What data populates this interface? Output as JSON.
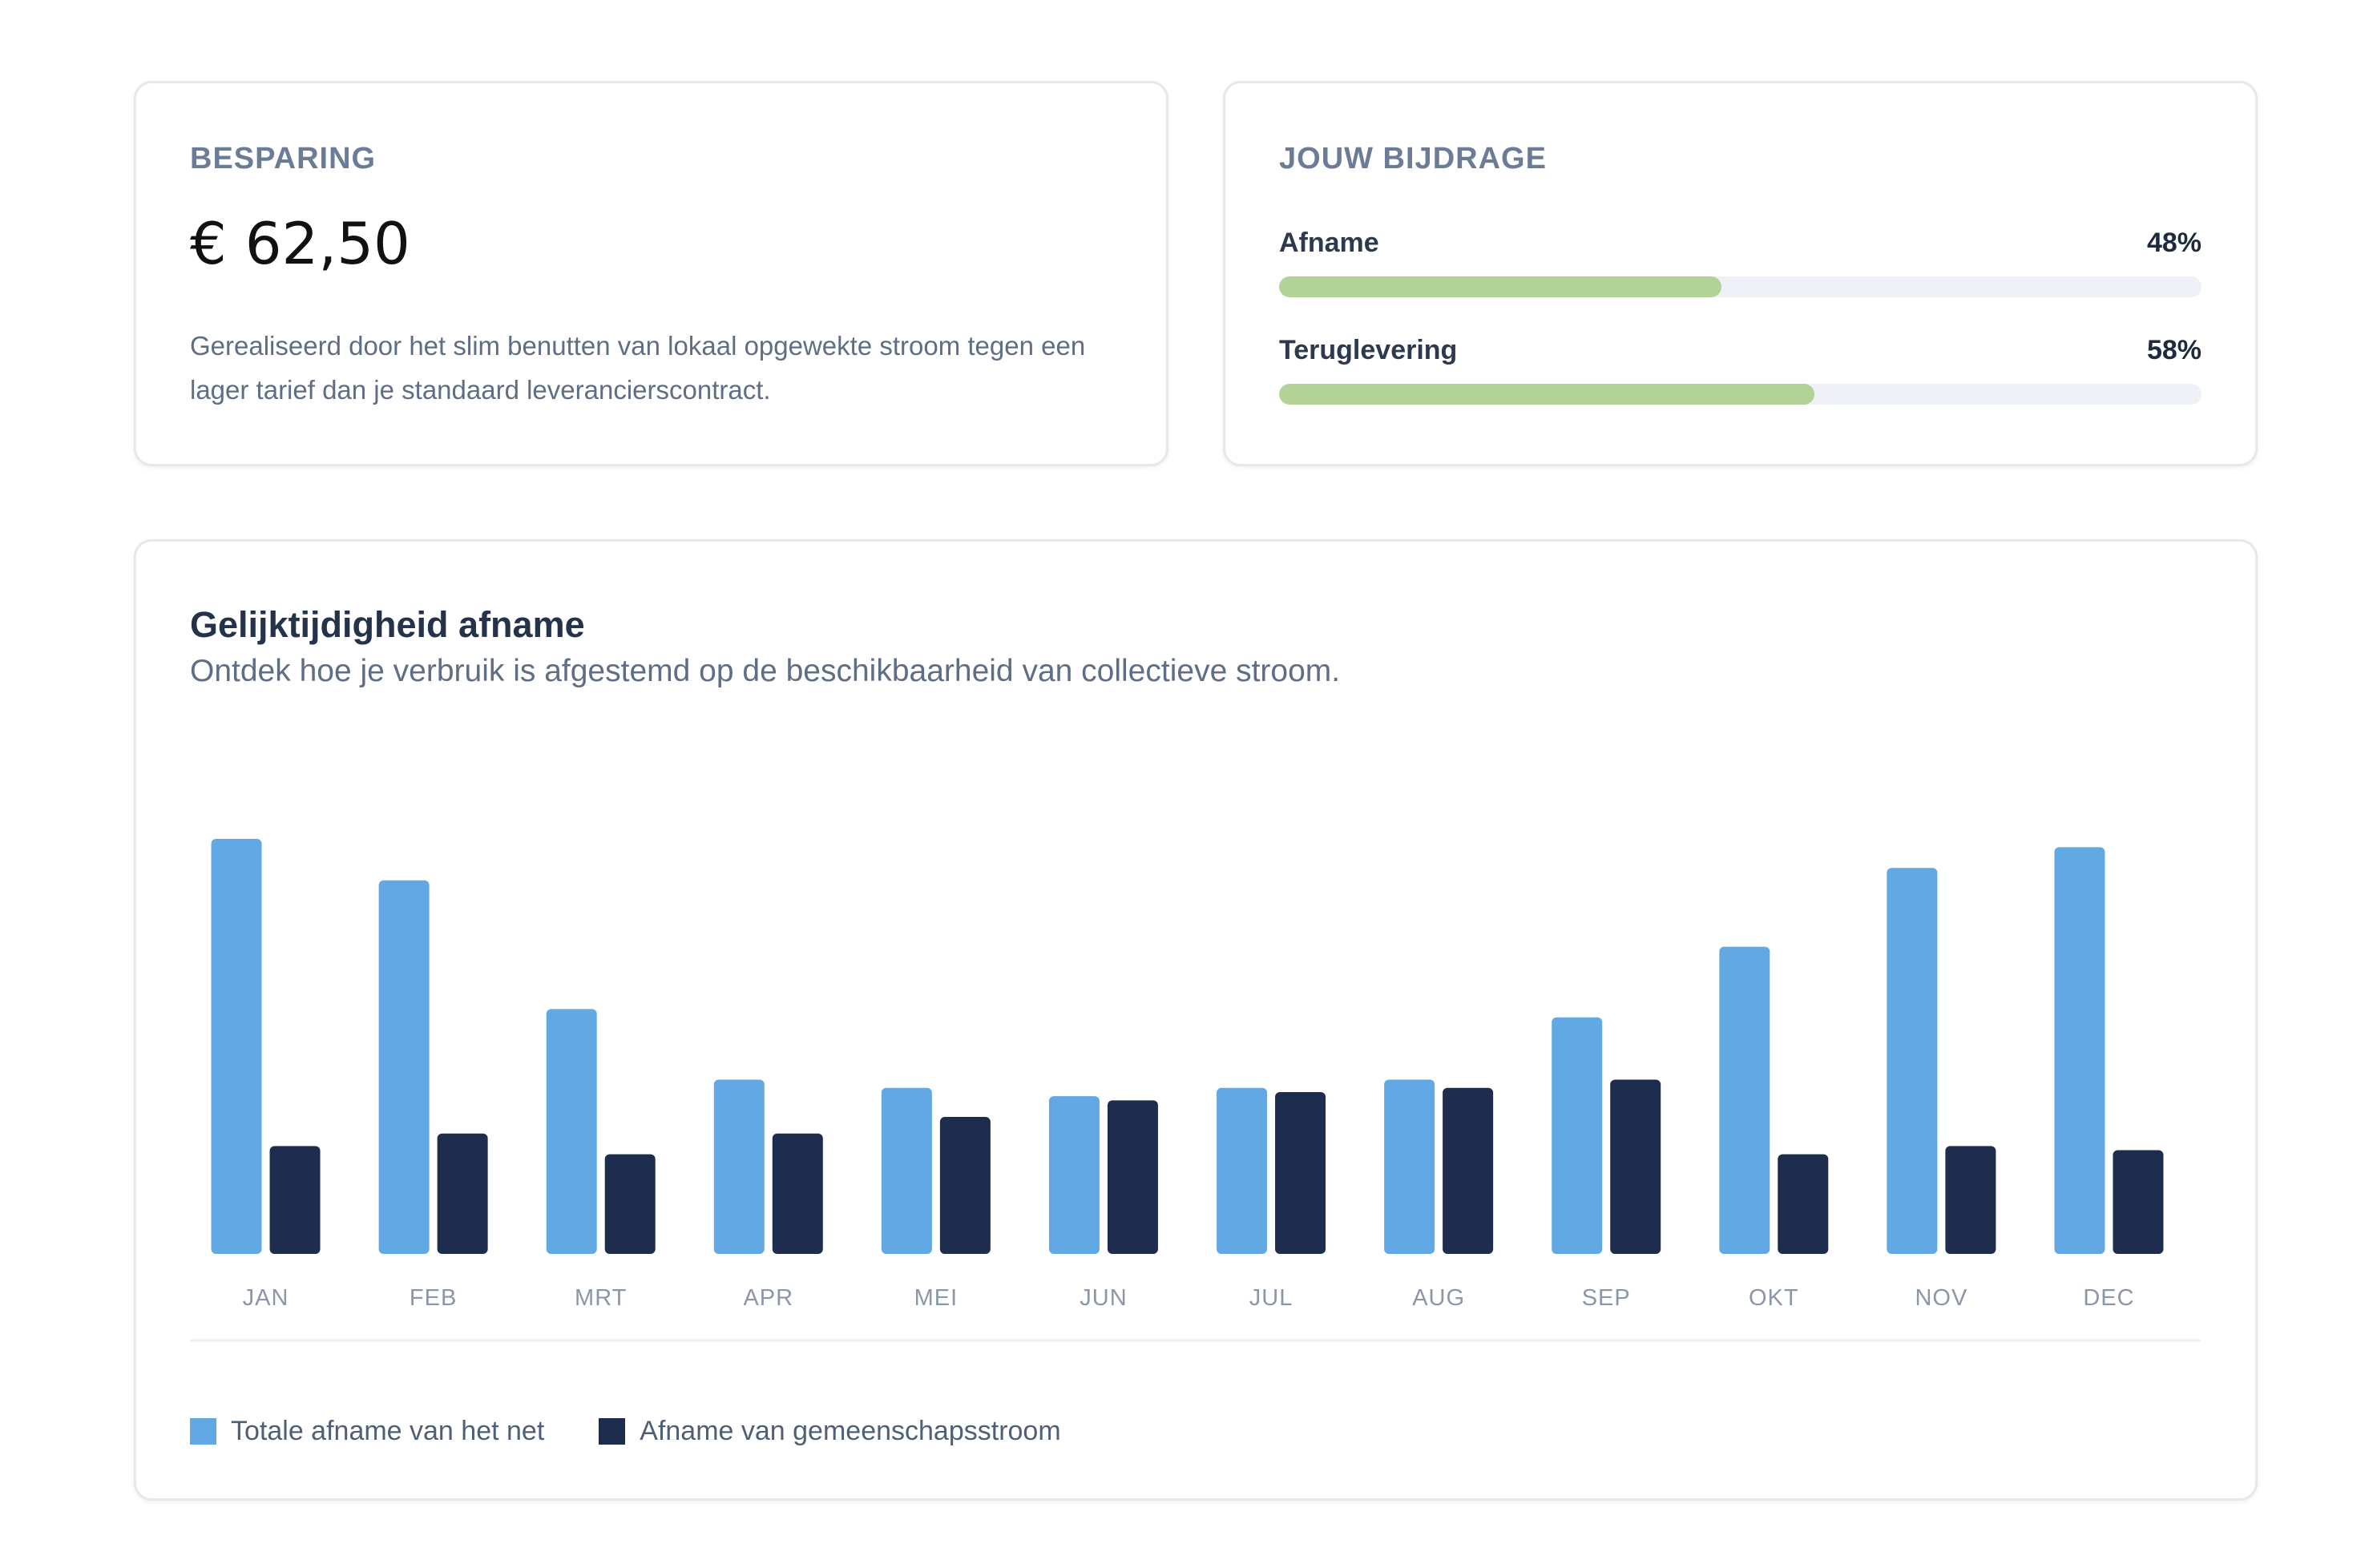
{
  "savings": {
    "label": "BESPARING",
    "amount": "€ 62,50",
    "description": "Gerealiseerd door het slim benutten van lokaal opgewekte stroom tegen een lager tarief dan je standaard leverancierscontract."
  },
  "contribution": {
    "label": "JOUW BIJDRAGE",
    "items": [
      {
        "label": "Afname",
        "percent_text": "48%",
        "value": 48
      },
      {
        "label": "Teruglevering",
        "percent_text": "58%",
        "value": 58
      }
    ],
    "bar_color": "#b2d298",
    "track_color": "#eef2f7"
  },
  "chart_section": {
    "title": "Gelijktijdigheid afname",
    "subtitle": "Ontdek hoe je verbruik is afgestemd op de beschikbaarheid van collectieve stroom."
  },
  "chart_data": {
    "type": "bar",
    "categories": [
      "JAN",
      "FEB",
      "MRT",
      "APR",
      "MEI",
      "JUN",
      "JUL",
      "AUG",
      "SEP",
      "OKT",
      "NOV",
      "DEC"
    ],
    "series": [
      {
        "name": "Totale afname van het net",
        "color": "#62a8e5",
        "values": [
          100,
          90,
          59,
          42,
          40,
          38,
          40,
          42,
          57,
          74,
          93,
          98
        ]
      },
      {
        "name": "Afname van gemeenschapsstroom",
        "color": "#1e2d4d",
        "values": [
          26,
          29,
          24,
          29,
          33,
          37,
          39,
          40,
          42,
          24,
          26,
          25
        ]
      }
    ],
    "ylim": [
      0,
      100
    ],
    "grid": false,
    "legend_position": "bottom-left"
  }
}
